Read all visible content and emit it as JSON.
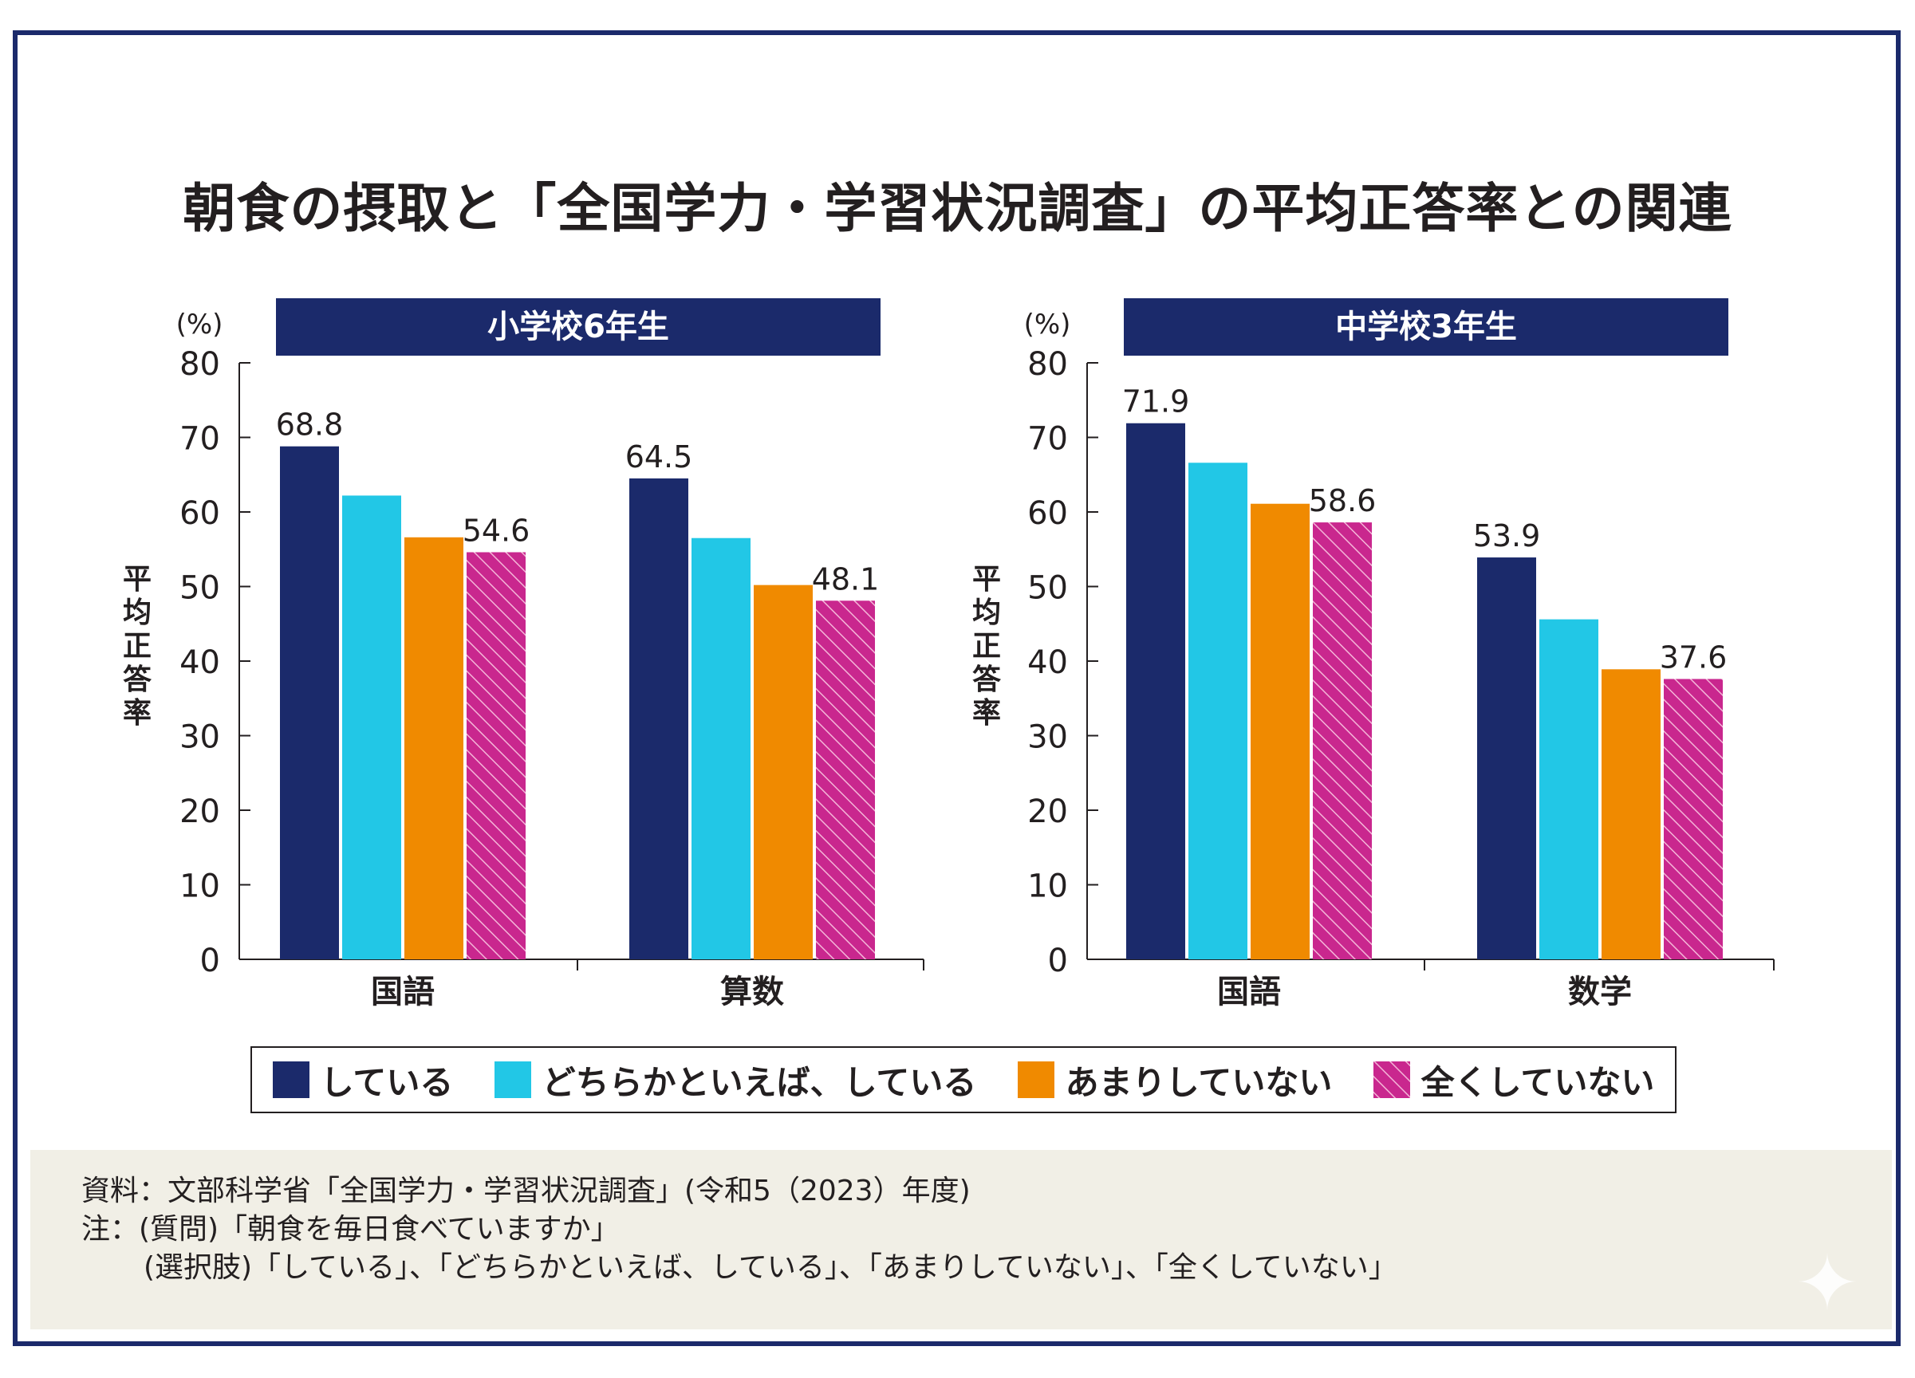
{
  "title": "朝食の摂取と「全国学力・学習状況調査」の平均正答率との関連",
  "colors": {
    "frame": "#1b2a6b",
    "header_bg": "#1b2a6b",
    "series": [
      "#1b2a6b",
      "#22c7e6",
      "#f08a00",
      "#c9278e"
    ],
    "notes_bg": "#f1efe6"
  },
  "legend": {
    "items": [
      {
        "label": "している"
      },
      {
        "label": "どちらかといえば、している"
      },
      {
        "label": "あまりしていない"
      },
      {
        "label": "全くしていない"
      }
    ]
  },
  "notes": {
    "source": "資料：文部科学省「全国学力・学習状況調査」(令和5（2023）年度)",
    "note1": "注：(質問)「朝食を毎日食べていますか」",
    "note2": "(選択肢)「している」、「どちらかといえば、している」、「あまりしていない」、「全くしていない」"
  },
  "chart_data": [
    {
      "type": "bar",
      "panel_title": "小学校6年生",
      "unit_label": "(%)",
      "ylabel": "平均正答率",
      "ylim": [
        0,
        80
      ],
      "yticks": [
        0,
        10,
        20,
        30,
        40,
        50,
        60,
        70,
        80
      ],
      "categories": [
        "国語",
        "算数"
      ],
      "series": [
        {
          "name": "している",
          "values": [
            68.8,
            64.5
          ]
        },
        {
          "name": "どちらかといえば、している",
          "values": [
            62.2,
            56.5
          ]
        },
        {
          "name": "あまりしていない",
          "values": [
            56.6,
            50.2
          ]
        },
        {
          "name": "全くしていない",
          "values": [
            54.6,
            48.1
          ]
        }
      ],
      "data_labels": [
        {
          "category": 0,
          "series": 0,
          "text": "68.8"
        },
        {
          "category": 0,
          "series": 3,
          "text": "54.6"
        },
        {
          "category": 1,
          "series": 0,
          "text": "64.5"
        },
        {
          "category": 1,
          "series": 3,
          "text": "48.1"
        }
      ]
    },
    {
      "type": "bar",
      "panel_title": "中学校3年生",
      "unit_label": "(%)",
      "ylabel": "平均正答率",
      "ylim": [
        0,
        80
      ],
      "yticks": [
        0,
        10,
        20,
        30,
        40,
        50,
        60,
        70,
        80
      ],
      "categories": [
        "国語",
        "数学"
      ],
      "series": [
        {
          "name": "している",
          "values": [
            71.9,
            53.9
          ]
        },
        {
          "name": "どちらかといえば、している",
          "values": [
            66.6,
            45.6
          ]
        },
        {
          "name": "あまりしていない",
          "values": [
            61.1,
            38.9
          ]
        },
        {
          "name": "全くしていない",
          "values": [
            58.6,
            37.6
          ]
        }
      ],
      "data_labels": [
        {
          "category": 0,
          "series": 0,
          "text": "71.9"
        },
        {
          "category": 0,
          "series": 3,
          "text": "58.6"
        },
        {
          "category": 1,
          "series": 0,
          "text": "53.9"
        },
        {
          "category": 1,
          "series": 3,
          "text": "37.6"
        }
      ]
    }
  ]
}
